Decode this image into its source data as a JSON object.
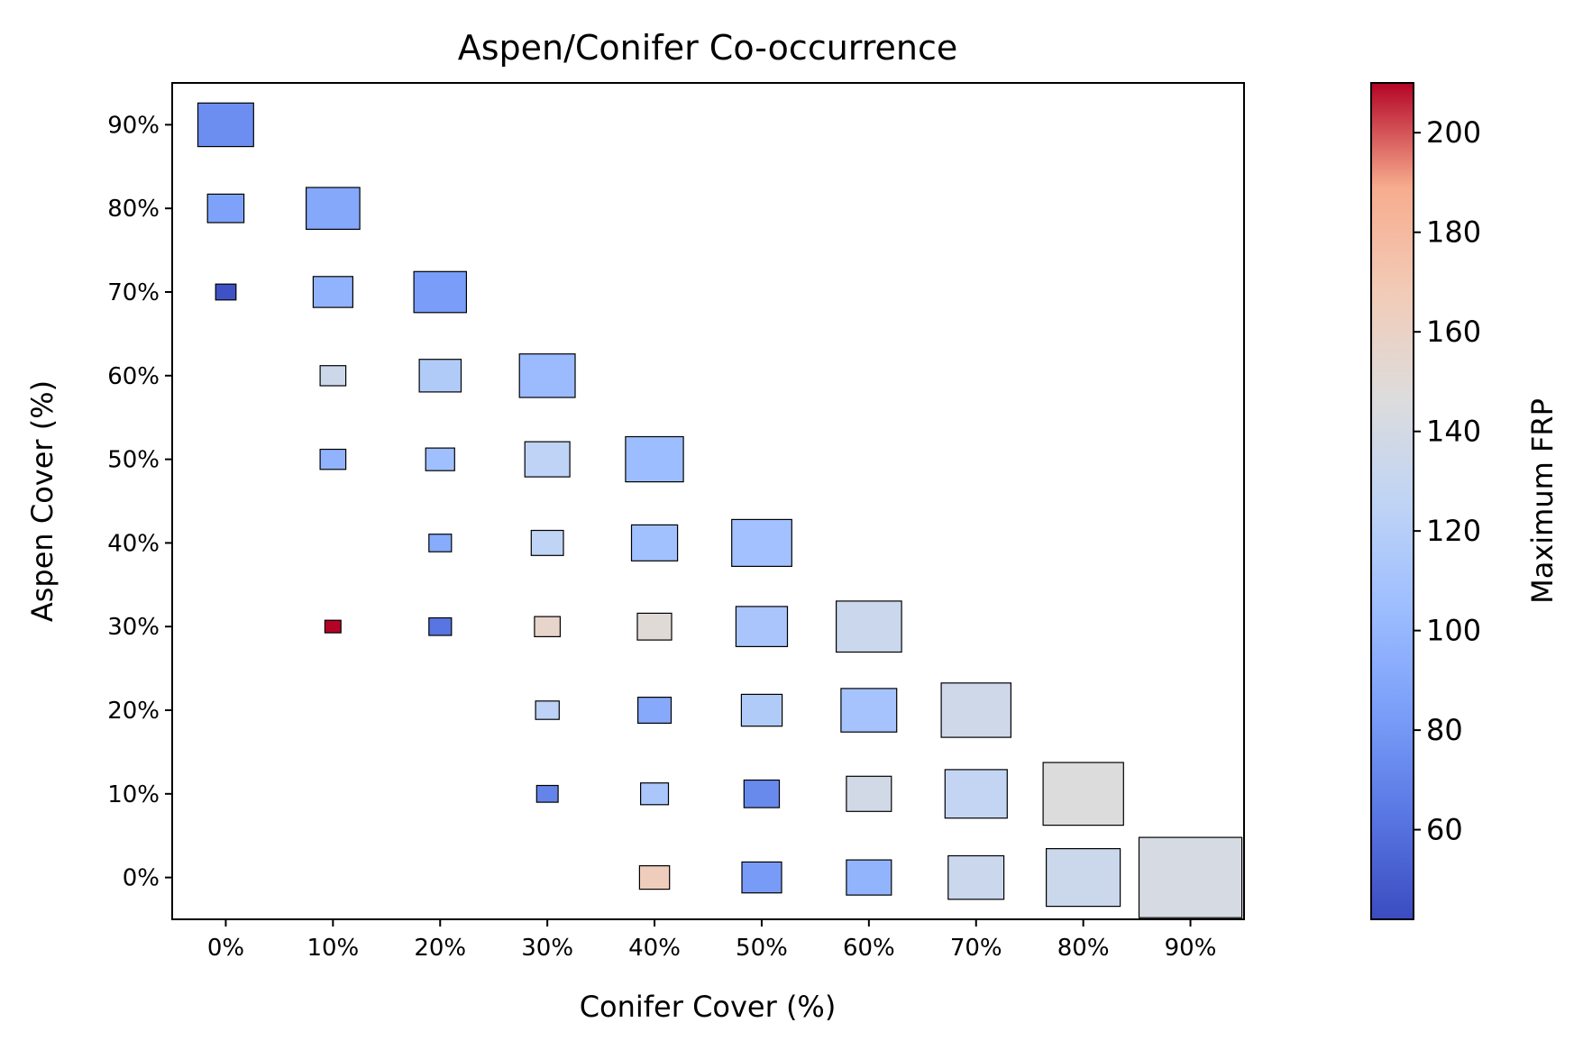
{
  "chart_data": {
    "type": "heatmap",
    "title": "Aspen/Conifer Co-occurrence",
    "xlabel": "Conifer Cover (%)",
    "ylabel": "Aspen Cover (%)",
    "x_ticks": [
      "0%",
      "10%",
      "20%",
      "30%",
      "40%",
      "50%",
      "60%",
      "70%",
      "80%",
      "90%"
    ],
    "y_ticks": [
      "0%",
      "10%",
      "20%",
      "30%",
      "40%",
      "50%",
      "60%",
      "70%",
      "80%",
      "90%"
    ],
    "xlim": [
      -5,
      95
    ],
    "ylim": [
      -5,
      95
    ],
    "colorbar": {
      "label": "Maximum FRP",
      "colormap": "coolwarm",
      "range": [
        42,
        210
      ],
      "ticks": [
        "60",
        "80",
        "100",
        "120",
        "140",
        "160",
        "180",
        "200"
      ],
      "tick_values": [
        60,
        80,
        100,
        120,
        140,
        160,
        180,
        200
      ]
    },
    "cells": [
      {
        "conifer": 0,
        "aspen": 90,
        "frp": 75,
        "relative_size": 0.52
      },
      {
        "conifer": 0,
        "aspen": 80,
        "frp": 86,
        "relative_size": 0.34
      },
      {
        "conifer": 10,
        "aspen": 80,
        "frp": 90,
        "relative_size": 0.5
      },
      {
        "conifer": 0,
        "aspen": 70,
        "frp": 45,
        "relative_size": 0.19
      },
      {
        "conifer": 10,
        "aspen": 70,
        "frp": 97,
        "relative_size": 0.37
      },
      {
        "conifer": 20,
        "aspen": 70,
        "frp": 83,
        "relative_size": 0.49
      },
      {
        "conifer": 10,
        "aspen": 60,
        "frp": 135,
        "relative_size": 0.24
      },
      {
        "conifer": 20,
        "aspen": 60,
        "frp": 117,
        "relative_size": 0.39
      },
      {
        "conifer": 30,
        "aspen": 60,
        "frp": 103,
        "relative_size": 0.52
      },
      {
        "conifer": 10,
        "aspen": 50,
        "frp": 97,
        "relative_size": 0.24
      },
      {
        "conifer": 20,
        "aspen": 50,
        "frp": 106,
        "relative_size": 0.27
      },
      {
        "conifer": 30,
        "aspen": 50,
        "frp": 125,
        "relative_size": 0.42
      },
      {
        "conifer": 40,
        "aspen": 50,
        "frp": 104,
        "relative_size": 0.54
      },
      {
        "conifer": 20,
        "aspen": 40,
        "frp": 92,
        "relative_size": 0.21
      },
      {
        "conifer": 30,
        "aspen": 40,
        "frp": 126,
        "relative_size": 0.3
      },
      {
        "conifer": 40,
        "aspen": 40,
        "frp": 107,
        "relative_size": 0.43
      },
      {
        "conifer": 50,
        "aspen": 40,
        "frp": 108,
        "relative_size": 0.56
      },
      {
        "conifer": 10,
        "aspen": 30,
        "frp": 210,
        "relative_size": 0.15
      },
      {
        "conifer": 20,
        "aspen": 30,
        "frp": 62,
        "relative_size": 0.21
      },
      {
        "conifer": 30,
        "aspen": 30,
        "frp": 157,
        "relative_size": 0.24
      },
      {
        "conifer": 40,
        "aspen": 30,
        "frp": 150,
        "relative_size": 0.32
      },
      {
        "conifer": 50,
        "aspen": 30,
        "frp": 112,
        "relative_size": 0.48
      },
      {
        "conifer": 60,
        "aspen": 30,
        "frp": 133,
        "relative_size": 0.61
      },
      {
        "conifer": 30,
        "aspen": 20,
        "frp": 124,
        "relative_size": 0.22
      },
      {
        "conifer": 40,
        "aspen": 20,
        "frp": 91,
        "relative_size": 0.31
      },
      {
        "conifer": 50,
        "aspen": 20,
        "frp": 117,
        "relative_size": 0.38
      },
      {
        "conifer": 60,
        "aspen": 20,
        "frp": 110,
        "relative_size": 0.52
      },
      {
        "conifer": 70,
        "aspen": 20,
        "frp": 137,
        "relative_size": 0.65
      },
      {
        "conifer": 30,
        "aspen": 10,
        "frp": 70,
        "relative_size": 0.2
      },
      {
        "conifer": 40,
        "aspen": 10,
        "frp": 113,
        "relative_size": 0.26
      },
      {
        "conifer": 50,
        "aspen": 10,
        "frp": 73,
        "relative_size": 0.33
      },
      {
        "conifer": 60,
        "aspen": 10,
        "frp": 139,
        "relative_size": 0.42
      },
      {
        "conifer": 70,
        "aspen": 10,
        "frp": 128,
        "relative_size": 0.58
      },
      {
        "conifer": 80,
        "aspen": 10,
        "frp": 147,
        "relative_size": 0.75
      },
      {
        "conifer": 40,
        "aspen": 0,
        "frp": 165,
        "relative_size": 0.28
      },
      {
        "conifer": 50,
        "aspen": 0,
        "frp": 82,
        "relative_size": 0.37
      },
      {
        "conifer": 60,
        "aspen": 0,
        "frp": 98,
        "relative_size": 0.42
      },
      {
        "conifer": 70,
        "aspen": 0,
        "frp": 133,
        "relative_size": 0.52
      },
      {
        "conifer": 80,
        "aspen": 0,
        "frp": 134,
        "relative_size": 0.69
      },
      {
        "conifer": 90,
        "aspen": 0,
        "frp": 142,
        "relative_size": 0.96
      }
    ]
  }
}
